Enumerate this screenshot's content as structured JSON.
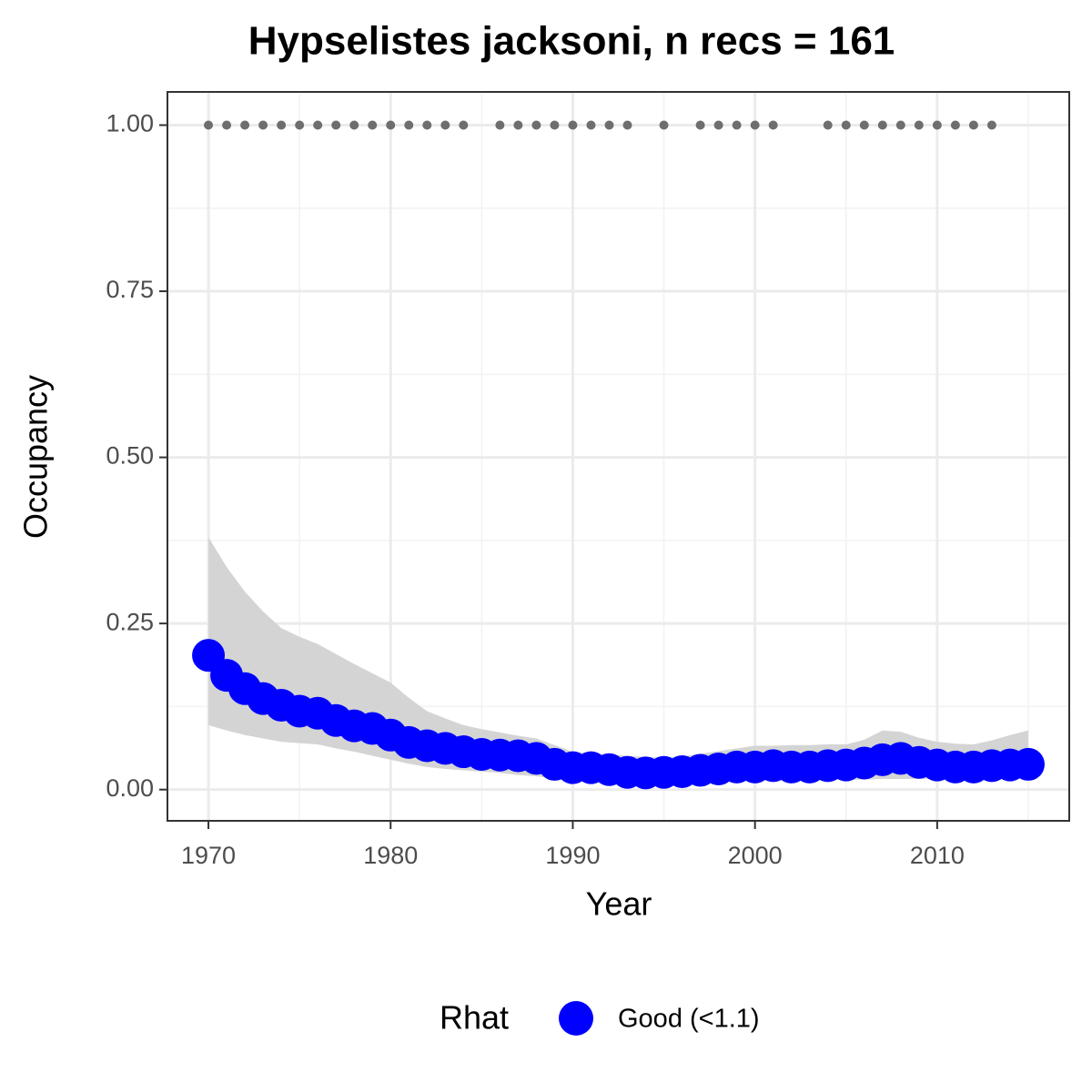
{
  "chart_data": {
    "type": "line",
    "title": "Hypselistes jacksoni, n recs = 161",
    "xlabel": "Year",
    "ylabel": "Occupancy",
    "x": [
      1970,
      1971,
      1972,
      1973,
      1974,
      1975,
      1976,
      1977,
      1978,
      1979,
      1980,
      1981,
      1982,
      1983,
      1984,
      1985,
      1986,
      1987,
      1988,
      1989,
      1990,
      1991,
      1992,
      1993,
      1994,
      1995,
      1996,
      1997,
      1998,
      1999,
      2000,
      2001,
      2002,
      2003,
      2004,
      2005,
      2006,
      2007,
      2008,
      2009,
      2010,
      2011,
      2012,
      2013,
      2014,
      2015
    ],
    "series": [
      {
        "name": "Good (<1.1)",
        "color": "#0000ff",
        "ribbon_color": "#d4d4d4",
        "values": [
          0.202,
          0.172,
          0.152,
          0.137,
          0.127,
          0.118,
          0.115,
          0.104,
          0.096,
          0.092,
          0.082,
          0.071,
          0.066,
          0.062,
          0.057,
          0.053,
          0.052,
          0.051,
          0.047,
          0.038,
          0.033,
          0.033,
          0.03,
          0.026,
          0.025,
          0.026,
          0.027,
          0.029,
          0.031,
          0.034,
          0.034,
          0.036,
          0.034,
          0.034,
          0.036,
          0.037,
          0.04,
          0.045,
          0.047,
          0.041,
          0.037,
          0.034,
          0.034,
          0.036,
          0.037,
          0.038
        ],
        "upper": [
          0.38,
          0.335,
          0.298,
          0.268,
          0.243,
          0.23,
          0.219,
          0.204,
          0.189,
          0.175,
          0.161,
          0.138,
          0.118,
          0.107,
          0.097,
          0.091,
          0.086,
          0.081,
          0.077,
          0.067,
          0.057,
          0.055,
          0.053,
          0.051,
          0.049,
          0.048,
          0.05,
          0.054,
          0.058,
          0.062,
          0.066,
          0.066,
          0.067,
          0.067,
          0.068,
          0.068,
          0.075,
          0.089,
          0.087,
          0.078,
          0.072,
          0.069,
          0.068,
          0.074,
          0.082,
          0.089
        ],
        "lower": [
          0.097,
          0.089,
          0.082,
          0.077,
          0.072,
          0.07,
          0.068,
          0.062,
          0.057,
          0.051,
          0.045,
          0.039,
          0.034,
          0.031,
          0.029,
          0.027,
          0.025,
          0.022,
          0.02,
          0.017,
          0.015,
          0.014,
          0.013,
          0.012,
          0.011,
          0.011,
          0.012,
          0.012,
          0.013,
          0.013,
          0.014,
          0.014,
          0.014,
          0.015,
          0.015,
          0.015,
          0.015,
          0.016,
          0.016,
          0.016,
          0.016,
          0.016,
          0.017,
          0.017,
          0.018,
          0.018
        ]
      }
    ],
    "records": {
      "color": "#6e6e6e",
      "x": [
        1970,
        1971,
        1972,
        1973,
        1974,
        1975,
        1976,
        1977,
        1978,
        1979,
        1980,
        1981,
        1982,
        1983,
        1984,
        1986,
        1987,
        1988,
        1989,
        1990,
        1991,
        1992,
        1993,
        1995,
        1997,
        1998,
        1999,
        2000,
        2001,
        2004,
        2005,
        2006,
        2007,
        2008,
        2009,
        2010,
        2011,
        2012,
        2013
      ],
      "values": [
        1,
        1,
        1,
        1,
        1,
        1,
        1,
        1,
        1,
        1,
        1,
        1,
        1,
        1,
        1,
        1,
        1,
        1,
        1,
        1,
        1,
        1,
        1,
        1,
        1,
        1,
        1,
        1,
        1,
        1,
        1,
        1,
        1,
        1,
        1,
        1,
        1,
        1,
        1
      ]
    },
    "legend_title": "Rhat",
    "legend": "bottom",
    "xlim": [
      1967.75,
      2017.25
    ],
    "ylim": [
      -0.047,
      1.05
    ],
    "xticks": [
      1970,
      1980,
      1990,
      2000,
      2010
    ],
    "x_minor_ticks": [
      1975,
      1985,
      1995,
      2005,
      2015
    ],
    "yticks": [
      {
        "value": 0,
        "label": "0.00"
      },
      0.25,
      {
        "value": 0.5,
        "label": "0.50"
      },
      0.75,
      {
        "value": 1,
        "label": "1.00"
      }
    ],
    "y_minor_ticks": [
      0.125,
      0.375,
      0.625,
      0.875
    ],
    "grid": true
  }
}
